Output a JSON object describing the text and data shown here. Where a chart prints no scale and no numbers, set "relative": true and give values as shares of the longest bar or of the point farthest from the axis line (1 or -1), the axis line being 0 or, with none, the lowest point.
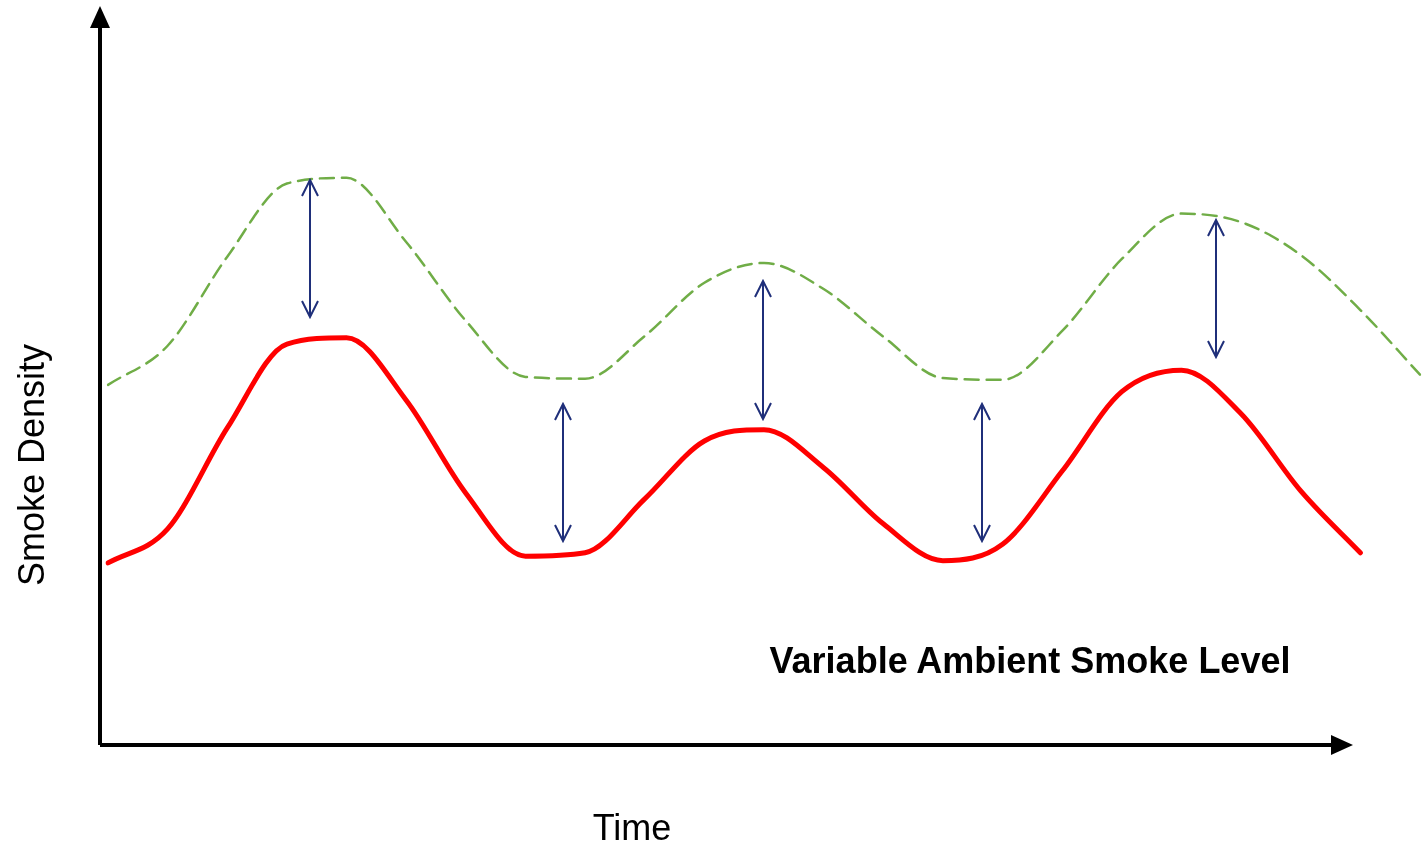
{
  "chart_data": {
    "type": "line",
    "relative": true,
    "xlabel": "Time",
    "ylabel": "Smoke Density",
    "annotations": [
      "Variable Ambient Smoke Level"
    ],
    "legend": false,
    "marker": "none",
    "categories": [
      null,
      null,
      null,
      null,
      null,
      null,
      null,
      null,
      null,
      null,
      null,
      null,
      null,
      null,
      null,
      null,
      null,
      null,
      null,
      null,
      null,
      null,
      null
    ],
    "series": [
      {
        "color": "#70ad47",
        "line_style": "dashed",
        "values": [
          0.635,
          0.704,
          0.861,
          0.99,
          1,
          0.887,
          0.748,
          0.649,
          0.646,
          0.721,
          0.815,
          0.85,
          0.804,
          0.72,
          0.647,
          0.644,
          0.73,
          0.857,
          0.937,
          0.922,
          0.864,
          0.767,
          0.653
        ]
      },
      {
        "color": "#ff0000",
        "line_style": "solid",
        "values": [
          0.321,
          0.381,
          0.559,
          0.707,
          0.718,
          0.608,
          0.444,
          0.333,
          0.339,
          0.434,
          0.536,
          0.556,
          0.489,
          0.39,
          0.325,
          0.354,
          0.483,
          0.623,
          0.661,
          0.584,
          0.448,
          0.339,
          null
        ]
      }
    ]
  }
}
